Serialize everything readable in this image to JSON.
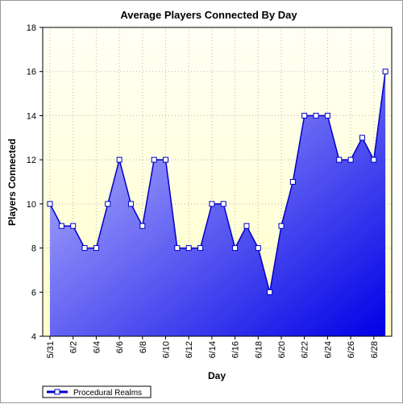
{
  "chart_data": {
    "type": "area",
    "title": "Average Players Connected By Day",
    "xlabel": "Day",
    "ylabel": "Players Connected",
    "ylim": [
      4,
      18
    ],
    "yticks": [
      4,
      6,
      8,
      10,
      12,
      14,
      16,
      18
    ],
    "grid": true,
    "legend_position": "bottom-left",
    "x": [
      "5/31",
      "6/1",
      "6/2",
      "6/3",
      "6/4",
      "6/5",
      "6/6",
      "6/7",
      "6/8",
      "6/9",
      "6/10",
      "6/11",
      "6/12",
      "6/13",
      "6/14",
      "6/15",
      "6/16",
      "6/17",
      "6/18",
      "6/19",
      "6/20",
      "6/21",
      "6/22",
      "6/23",
      "6/24",
      "6/25",
      "6/26",
      "6/27",
      "6/28",
      "6/29"
    ],
    "xtick_labels": [
      "5/31",
      "6/2",
      "6/4",
      "6/6",
      "6/8",
      "6/10",
      "6/12",
      "6/14",
      "6/16",
      "6/18",
      "6/20",
      "6/22",
      "6/24",
      "6/26",
      "6/28"
    ],
    "series": [
      {
        "name": "Procedural Realms",
        "values": [
          10,
          9,
          9,
          8,
          8,
          10,
          12,
          10,
          9,
          12,
          12,
          8,
          8,
          8,
          10,
          10,
          8,
          9,
          8,
          6,
          9,
          11,
          14,
          14,
          14,
          12,
          12,
          13,
          12,
          16
        ]
      }
    ]
  },
  "colors": {
    "plot_background_top": "#fffff5",
    "plot_background_bottom": "#ffffc8",
    "area_light": "#c8c8ff",
    "area_dark": "#0000e6",
    "line": "#0000c8",
    "marker_fill": "#ffffff"
  }
}
